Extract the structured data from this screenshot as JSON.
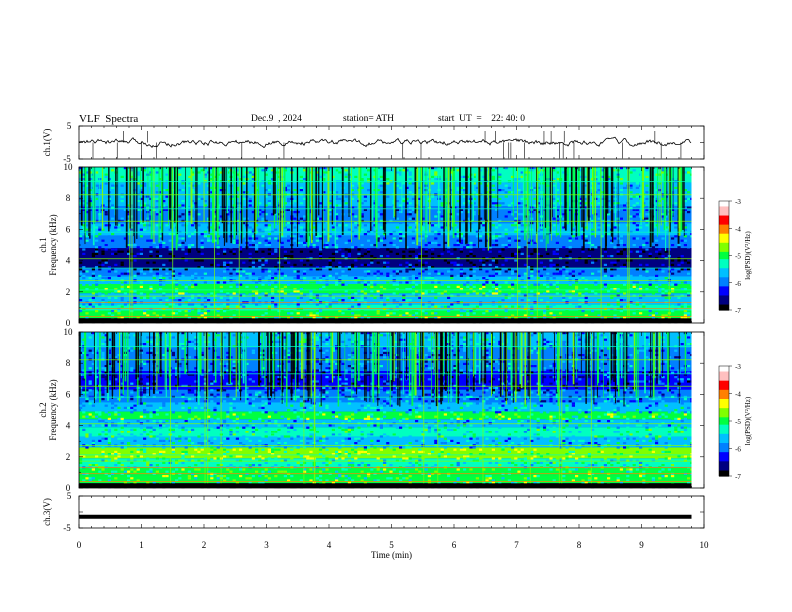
{
  "header": {
    "title": "VLF  Spectra",
    "date": "Dec.9  , 2024",
    "station": "station= ATH",
    "start_ut": "start  UT  =    22: 40: 0"
  },
  "chart_data": [
    {
      "type": "line",
      "panel": "ch1-waveform",
      "ylabel": "ch.1(V)",
      "yticks": [
        "5",
        "-5"
      ],
      "ylim": [
        -5,
        5
      ],
      "x_range_min": [
        0,
        9.8
      ],
      "note_values": "trace hovers near 0 V with small fluctuations and sparse negative spikes",
      "color": "#000000"
    },
    {
      "type": "heatmap",
      "panel": "ch1-spectrogram",
      "ylabel": "ch.1\nFrequency  (kHz)",
      "ylabel_line1": "ch.1",
      "ylabel_line2": "Frequency  (kHz)",
      "yticks": [
        "0",
        "2",
        "4",
        "6",
        "8",
        "10"
      ],
      "ylim": [
        0,
        10
      ],
      "colorbar": {
        "label": "log(PSD)(V²/Hz)",
        "ticks": [
          "-3",
          "-4",
          "-5",
          "-6",
          "-7"
        ],
        "range": [
          -7,
          -3
        ]
      }
    },
    {
      "type": "heatmap",
      "panel": "ch2-spectrogram",
      "ylabel_line1": "ch.2",
      "ylabel_line2": "Frequency  (kHz)",
      "yticks": [
        "0",
        "2",
        "4",
        "6",
        "8",
        "10"
      ],
      "ylim": [
        0,
        10
      ],
      "colorbar": {
        "label": "log(PSD)(V²/Hz)",
        "ticks": [
          "-3",
          "-4",
          "-5",
          "-6",
          "-7"
        ],
        "range": [
          -7,
          -3
        ]
      }
    },
    {
      "type": "line",
      "panel": "ch3-waveform",
      "ylabel": "ch.3(V)",
      "yticks": [
        "5",
        "-5"
      ],
      "ylim": [
        -5,
        5
      ],
      "constant_value_v": -1.5,
      "color": "#000000"
    }
  ],
  "xaxis": {
    "label": "Time  (min)",
    "ticks": [
      "0",
      "1",
      "2",
      "3",
      "4",
      "5",
      "6",
      "7",
      "8",
      "9",
      "10"
    ],
    "range": [
      0,
      10
    ]
  },
  "colors": {
    "colormap": [
      "#000000",
      "#000080",
      "#0000ff",
      "#0080ff",
      "#00c0ff",
      "#00ffc0",
      "#00ff40",
      "#80ff00",
      "#ffff00",
      "#ff8000",
      "#ff0000",
      "#ffc0c0",
      "#ffffff"
    ]
  }
}
